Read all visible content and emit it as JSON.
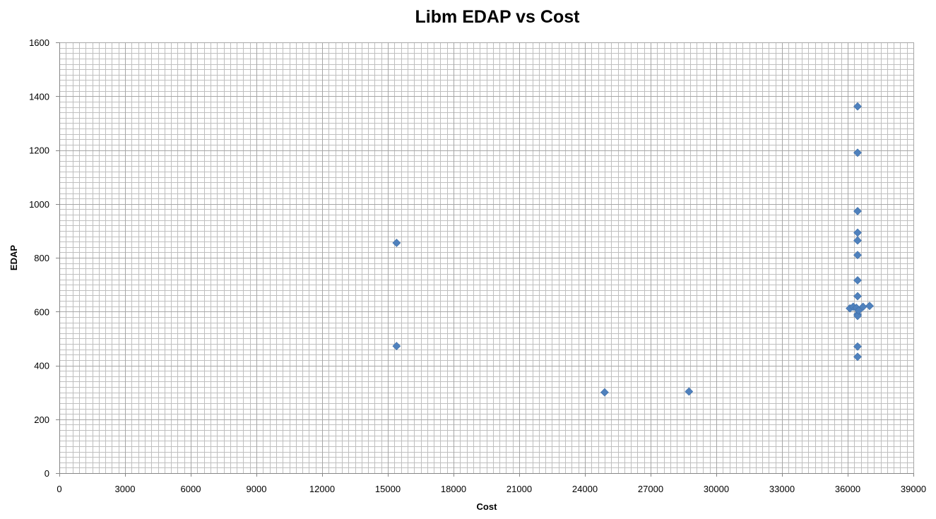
{
  "chart_data": {
    "type": "scatter",
    "title": "Libm EDAP vs Cost",
    "xlabel": "Cost",
    "ylabel": "EDAP",
    "xlim": [
      0,
      39000
    ],
    "ylim": [
      0,
      1600
    ],
    "x_ticks": [
      0,
      3000,
      6000,
      9000,
      12000,
      15000,
      18000,
      21000,
      24000,
      27000,
      30000,
      33000,
      36000,
      39000
    ],
    "y_ticks": [
      0,
      200,
      400,
      600,
      800,
      1000,
      1200,
      1400,
      1600
    ],
    "x_minor_step": 300,
    "y_minor_step": 20,
    "grid": true,
    "legend": "none",
    "marker": "diamond",
    "marker_color": "#4F81BD",
    "grid_color": "#BFBFBF",
    "axis_color": "#868686",
    "series": [
      {
        "points": [
          {
            "x": 15400,
            "y": 855
          },
          {
            "x": 15400,
            "y": 472
          },
          {
            "x": 24900,
            "y": 300
          },
          {
            "x": 28750,
            "y": 303
          },
          {
            "x": 36450,
            "y": 1362
          },
          {
            "x": 36450,
            "y": 1190
          },
          {
            "x": 36450,
            "y": 973
          },
          {
            "x": 36450,
            "y": 893
          },
          {
            "x": 36450,
            "y": 864
          },
          {
            "x": 36450,
            "y": 810
          },
          {
            "x": 36450,
            "y": 716
          },
          {
            "x": 36450,
            "y": 657
          },
          {
            "x": 36100,
            "y": 612
          },
          {
            "x": 36250,
            "y": 618
          },
          {
            "x": 36400,
            "y": 614
          },
          {
            "x": 36450,
            "y": 590
          },
          {
            "x": 36450,
            "y": 584
          },
          {
            "x": 36500,
            "y": 604
          },
          {
            "x": 36700,
            "y": 618
          },
          {
            "x": 37000,
            "y": 621
          },
          {
            "x": 36450,
            "y": 470
          },
          {
            "x": 36450,
            "y": 432
          }
        ]
      }
    ]
  }
}
